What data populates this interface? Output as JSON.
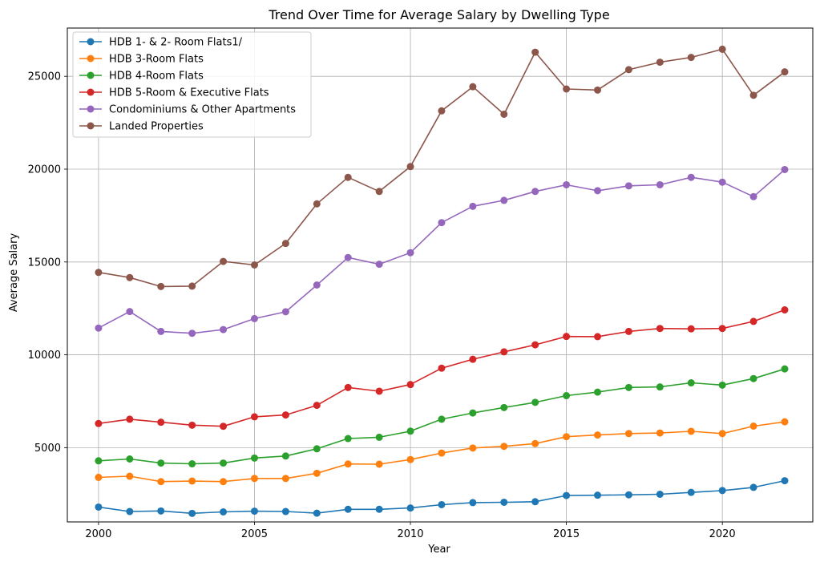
{
  "chart_data": {
    "type": "line",
    "title": "Trend Over Time for Average Salary by Dwelling Type",
    "xlabel": "Year",
    "ylabel": "Average Salary",
    "x": [
      2000,
      2001,
      2002,
      2003,
      2004,
      2005,
      2006,
      2007,
      2008,
      2009,
      2010,
      2011,
      2012,
      2013,
      2014,
      2015,
      2016,
      2017,
      2018,
      2019,
      2020,
      2021,
      2022
    ],
    "xlim": [
      1999.0,
      2022.9
    ],
    "ylim": [
      1000,
      27600
    ],
    "xticks": [
      2000,
      2005,
      2010,
      2015,
      2020
    ],
    "yticks": [
      5000,
      10000,
      15000,
      20000,
      25000
    ],
    "grid": true,
    "legend_position": "top-left",
    "series": [
      {
        "name": "HDB 1- & 2- Room Flats1/",
        "color": "#1f77b4",
        "values": [
          1800,
          1560,
          1590,
          1460,
          1540,
          1580,
          1560,
          1470,
          1680,
          1680,
          1750,
          1930,
          2040,
          2060,
          2090,
          2420,
          2440,
          2460,
          2490,
          2590,
          2690,
          2860,
          3220
        ]
      },
      {
        "name": "HDB 3-Room Flats",
        "color": "#ff7f0e",
        "values": [
          3400,
          3460,
          3170,
          3200,
          3170,
          3340,
          3340,
          3620,
          4120,
          4110,
          4360,
          4710,
          4980,
          5070,
          5220,
          5590,
          5680,
          5760,
          5790,
          5880,
          5760,
          6160,
          6390
        ]
      },
      {
        "name": "HDB 4-Room Flats",
        "color": "#2ca02c",
        "values": [
          4290,
          4390,
          4170,
          4130,
          4170,
          4440,
          4550,
          4940,
          5490,
          5560,
          5890,
          6530,
          6870,
          7160,
          7440,
          7800,
          7990,
          8240,
          8270,
          8490,
          8370,
          8720,
          9240
        ]
      },
      {
        "name": "HDB 5-Room & Executive Flats",
        "color": "#d62728",
        "values": [
          6300,
          6530,
          6370,
          6210,
          6150,
          6660,
          6760,
          7280,
          8240,
          8040,
          8400,
          9280,
          9760,
          10160,
          10540,
          10990,
          10980,
          11260,
          11420,
          11400,
          11420,
          11800,
          12420
        ]
      },
      {
        "name": "Condominiums & Other Apartments",
        "color": "#9467bd",
        "values": [
          11440,
          12330,
          11260,
          11160,
          11360,
          11950,
          12320,
          13760,
          15240,
          14880,
          15500,
          17120,
          18000,
          18320,
          18800,
          19160,
          18840,
          19100,
          19160,
          19560,
          19300,
          18520,
          19980
        ]
      },
      {
        "name": "Landed Properties",
        "color": "#8c564b",
        "values": [
          14440,
          14160,
          13680,
          13700,
          15030,
          14840,
          16000,
          18130,
          19560,
          18800,
          20140,
          23140,
          24440,
          22960,
          26300,
          24320,
          24260,
          25360,
          25760,
          26020,
          26460,
          23980,
          25240
        ]
      }
    ]
  }
}
